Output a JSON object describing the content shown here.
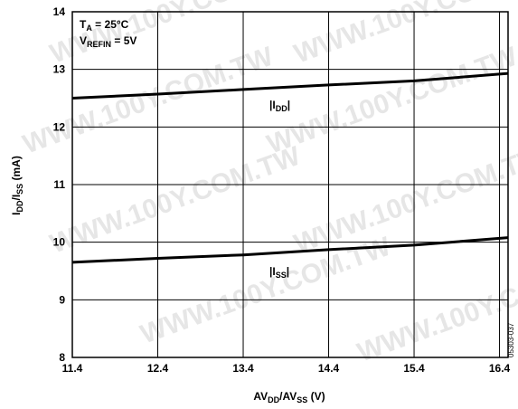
{
  "chart_data": {
    "type": "line",
    "xlabel": {
      "main": "AV",
      "sub1": "DD",
      "mid": "/AV",
      "sub2": "SS",
      "unit": " (V)"
    },
    "ylabel": {
      "main": "I",
      "sub1": "DD",
      "mid": "/I",
      "sub2": "SS",
      "unit": " (mA)"
    },
    "xlim": [
      11.4,
      16.5
    ],
    "ylim": [
      8,
      14
    ],
    "x_ticks": [
      "11.4",
      "12.4",
      "13.4",
      "14.4",
      "15.4",
      "16.4"
    ],
    "y_ticks": [
      "8",
      "9",
      "10",
      "11",
      "12",
      "13",
      "14"
    ],
    "grid": true,
    "series": [
      {
        "name": "|IDD|",
        "label": {
          "pre": "|I",
          "sub": "DD",
          "post": "|"
        },
        "x": [
          11.4,
          12.4,
          13.4,
          14.4,
          15.4,
          16.5
        ],
        "y": [
          12.5,
          12.57,
          12.65,
          12.73,
          12.8,
          12.93
        ]
      },
      {
        "name": "|ISS|",
        "label": {
          "pre": "|I",
          "sub": "SS",
          "post": "|"
        },
        "x": [
          11.4,
          12.4,
          13.4,
          14.4,
          15.4,
          16.5
        ],
        "y": [
          9.65,
          9.72,
          9.78,
          9.87,
          9.95,
          10.08
        ]
      }
    ],
    "conditions": [
      {
        "pre": "T",
        "sub": "A",
        "post": " = 25°C"
      },
      {
        "pre": "V",
        "sub": "REFIN",
        "post": " = 5V"
      }
    ],
    "figure_ref": "05303-037"
  },
  "watermark": "WWW.100Y.COM.TW"
}
